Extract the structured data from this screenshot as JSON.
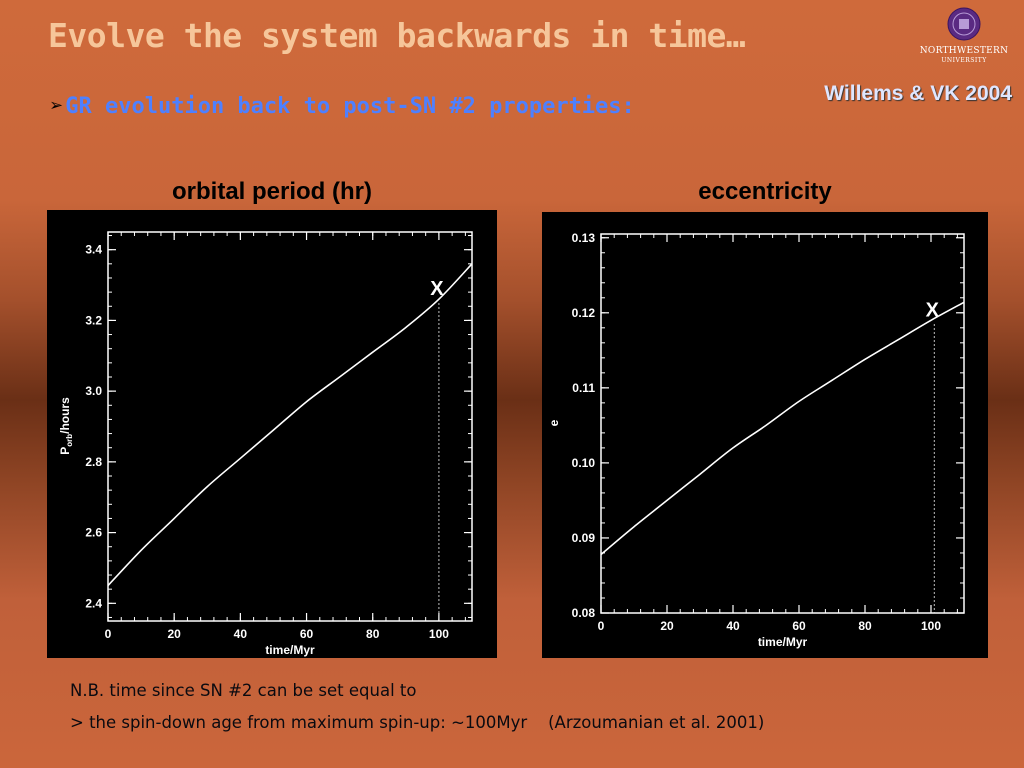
{
  "slide": {
    "title": "Evolve the system backwards in time…",
    "bullet_symbol": "➢",
    "bullet": "GR evolution back to post-SN #2 properties:",
    "citation": "Willems & VK 2004",
    "logo": {
      "icon": "university-seal-icon",
      "name": "NORTHWESTERN",
      "sub": "UNIVERSITY"
    },
    "notes": [
      "N.B. time since SN #2 can be set equal to",
      "> the spin-down age from maximum spin-up: ~100Myr    (Arzoumanian et al. 2001)"
    ],
    "colors": {
      "background": "#c9663a",
      "title": "#f6c69a",
      "bullet": "#4e80ff",
      "plot_bg": "#000000",
      "plot_fg": "#ffffff"
    }
  },
  "chart_data": [
    {
      "type": "line",
      "title": "orbital period (hr)",
      "xlabel": "time/Myr",
      "ylabel_main": "P",
      "ylabel_sub": "orb",
      "ylabel_rest": "/hours",
      "xlim": [
        0,
        110
      ],
      "ylim": [
        2.35,
        3.45
      ],
      "xticks": [
        0,
        20,
        40,
        60,
        80,
        100
      ],
      "yticks": [
        2.4,
        2.6,
        2.8,
        3.0,
        3.2,
        3.4
      ],
      "ytick_labels": [
        "2.4",
        "2.6",
        "2.8",
        "3.0",
        "3.2",
        "3.4"
      ],
      "series": [
        {
          "x": [
            0,
            10,
            20,
            30,
            40,
            50,
            60,
            70,
            80,
            90,
            100,
            110
          ],
          "y": [
            2.45,
            2.55,
            2.64,
            2.73,
            2.81,
            2.89,
            2.97,
            3.04,
            3.11,
            3.18,
            3.26,
            3.36
          ]
        }
      ],
      "marker": {
        "label": "X",
        "x": 100,
        "y": 3.26
      }
    },
    {
      "type": "line",
      "title": "eccentricity",
      "xlabel": "time/Myr",
      "ylabel_main": "e",
      "xlim": [
        0,
        110
      ],
      "ylim": [
        0.08,
        0.1305
      ],
      "xticks": [
        0,
        20,
        40,
        60,
        80,
        100
      ],
      "yticks": [
        0.08,
        0.09,
        0.1,
        0.11,
        0.12,
        0.13
      ],
      "ytick_labels": [
        "0.08",
        "0.09",
        "0.10",
        "0.11",
        "0.12",
        "0.13"
      ],
      "series": [
        {
          "x": [
            0,
            10,
            20,
            30,
            40,
            50,
            60,
            70,
            80,
            90,
            100,
            110
          ],
          "y": [
            0.0878,
            0.0915,
            0.095,
            0.0985,
            0.102,
            0.105,
            0.1082,
            0.111,
            0.1138,
            0.1164,
            0.119,
            0.1214
          ]
        }
      ],
      "marker": {
        "label": "X",
        "x": 101,
        "y": 0.119
      }
    }
  ]
}
